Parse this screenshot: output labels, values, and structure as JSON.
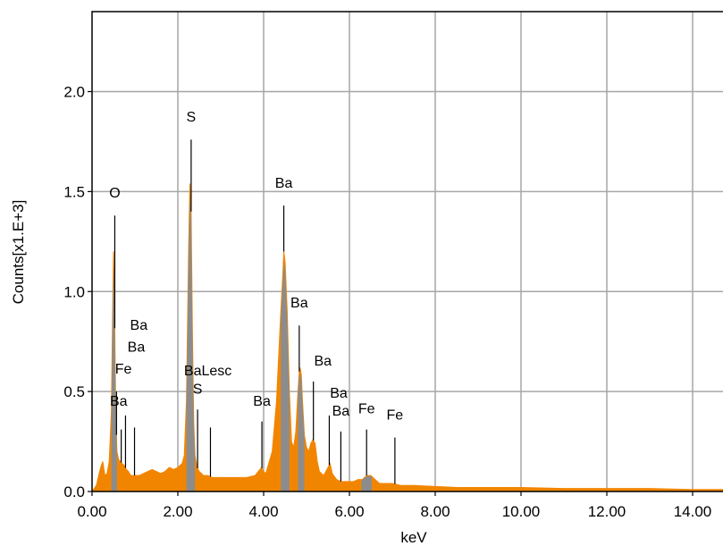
{
  "chart_data": {
    "type": "area",
    "title": "",
    "xlabel": "keV",
    "ylabel": "Counts[x1.E+3]",
    "xlim": [
      0,
      15.0
    ],
    "ylim": [
      0,
      2.4
    ],
    "x_ticks": [
      "0.00",
      "2.00",
      "4.00",
      "6.00",
      "8.00",
      "10.00",
      "12.00",
      "14.00"
    ],
    "y_ticks": [
      "0.0",
      "0.5",
      "1.0",
      "1.5",
      "2.0"
    ],
    "grid": true,
    "colors": {
      "spectrum": "#f28500",
      "peak_fill": "#8c8c8c",
      "grid": "#a6a6a6"
    },
    "series": [
      {
        "x": [
          0.0,
          0.1,
          0.2,
          0.25,
          0.3,
          0.35,
          0.4,
          0.45,
          0.48,
          0.5,
          0.52,
          0.55,
          0.58,
          0.62,
          0.66,
          0.7,
          0.75,
          0.8,
          0.85,
          0.9,
          0.95,
          1.0,
          1.1,
          1.2,
          1.3,
          1.4,
          1.5,
          1.6,
          1.7,
          1.8,
          1.9,
          2.0,
          2.1,
          2.15,
          2.2,
          2.25,
          2.28,
          2.31,
          2.34,
          2.37,
          2.4,
          2.45,
          2.5,
          2.6,
          2.7,
          2.8,
          2.9,
          3.0,
          3.2,
          3.4,
          3.6,
          3.8,
          3.95,
          4.0,
          4.05,
          4.2,
          4.3,
          4.4,
          4.45,
          4.47,
          4.5,
          4.55,
          4.6,
          4.65,
          4.7,
          4.75,
          4.8,
          4.83,
          4.85,
          4.88,
          4.9,
          4.95,
          5.0,
          5.05,
          5.1,
          5.15,
          5.2,
          5.25,
          5.3,
          5.4,
          5.5,
          5.55,
          5.6,
          5.7,
          5.8,
          5.9,
          6.0,
          6.1,
          6.2,
          6.3,
          6.4,
          6.5,
          6.6,
          6.7,
          6.8,
          7.0,
          7.2,
          7.5,
          8.0,
          8.5,
          9.0,
          10.0,
          11.0,
          12.0,
          13.0,
          14.0,
          15.0
        ],
        "y": [
          0.0,
          0.03,
          0.12,
          0.15,
          0.08,
          0.09,
          0.15,
          0.4,
          0.9,
          1.2,
          1.0,
          0.45,
          0.2,
          0.16,
          0.15,
          0.14,
          0.13,
          0.11,
          0.1,
          0.08,
          0.08,
          0.08,
          0.08,
          0.09,
          0.1,
          0.11,
          0.1,
          0.09,
          0.1,
          0.12,
          0.11,
          0.12,
          0.14,
          0.18,
          0.45,
          1.2,
          1.54,
          1.4,
          0.8,
          0.35,
          0.18,
          0.12,
          0.1,
          0.08,
          0.08,
          0.07,
          0.07,
          0.07,
          0.07,
          0.07,
          0.07,
          0.08,
          0.12,
          0.1,
          0.09,
          0.2,
          0.45,
          0.9,
          1.1,
          1.2,
          1.15,
          0.9,
          0.5,
          0.25,
          0.22,
          0.3,
          0.5,
          0.6,
          0.62,
          0.58,
          0.48,
          0.28,
          0.22,
          0.2,
          0.24,
          0.26,
          0.24,
          0.15,
          0.1,
          0.08,
          0.12,
          0.14,
          0.09,
          0.06,
          0.05,
          0.05,
          0.05,
          0.05,
          0.06,
          0.06,
          0.08,
          0.08,
          0.06,
          0.04,
          0.04,
          0.04,
          0.03,
          0.03,
          0.025,
          0.02,
          0.02,
          0.02,
          0.015,
          0.015,
          0.015,
          0.01,
          0.01
        ]
      }
    ],
    "peak_bands": [
      {
        "from": 0.45,
        "to": 0.58
      },
      {
        "from": 2.2,
        "to": 2.4
      },
      {
        "from": 4.4,
        "to": 4.6
      },
      {
        "from": 4.8,
        "to": 4.95
      },
      {
        "from": 6.28,
        "to": 6.52
      }
    ],
    "markers": [
      {
        "label": "O",
        "x": 0.53,
        "y_top": 1.38,
        "label_y": 1.47,
        "label_dx": 0
      },
      {
        "label": "S",
        "x": 2.31,
        "y_top": 1.76,
        "label_y": 1.85,
        "label_dx": 0
      },
      {
        "label": "Ba",
        "x": 4.47,
        "y_top": 1.43,
        "label_y": 1.52,
        "label_dx": 0
      },
      {
        "label": "Ba",
        "x": 4.83,
        "y_top": 0.83,
        "label_y": 0.92,
        "label_dx": 0
      },
      {
        "label": "Ba",
        "x": 5.16,
        "y_top": 0.55,
        "label_y": 0.63,
        "label_dx": 0.22
      },
      {
        "label": "Ba",
        "x": 5.53,
        "y_top": 0.38,
        "label_y": 0.47,
        "label_dx": 0.22
      },
      {
        "label": "Ba",
        "x": 5.8,
        "y_top": 0.3,
        "label_y": 0.38,
        "label_dx": 0
      },
      {
        "label": "Fe",
        "x": 6.4,
        "y_top": 0.31,
        "label_y": 0.39,
        "label_dx": 0
      },
      {
        "label": "Fe",
        "x": 7.06,
        "y_top": 0.27,
        "label_y": 0.36,
        "label_dx": 0
      },
      {
        "label": "Ba",
        "x": 3.96,
        "y_top": 0.35,
        "label_y": 0.43,
        "label_dx": 0
      },
      {
        "label": "S",
        "x": 2.46,
        "y_top": 0.41,
        "label_y": 0.49,
        "label_dx": 0
      },
      {
        "label": "BaLesc",
        "x": 2.76,
        "y_top": 0.32,
        "label_y": 0.58,
        "label_dx": -0.06
      },
      {
        "label": "Ba",
        "x": 0.57,
        "y_top": 0.5,
        "label_y": 0.43,
        "label_dx": 0.05
      },
      {
        "label": "Fe",
        "x": 0.68,
        "y_top": 0.31,
        "label_y": 0.59,
        "label_dx": 0.05
      },
      {
        "label": "Ba",
        "x": 0.78,
        "y_top": 0.38,
        "label_y": 0.7,
        "label_dx": 0.25
      },
      {
        "label": "Ba",
        "x": 0.99,
        "y_top": 0.32,
        "label_y": 0.81,
        "label_dx": 0.1
      }
    ]
  }
}
